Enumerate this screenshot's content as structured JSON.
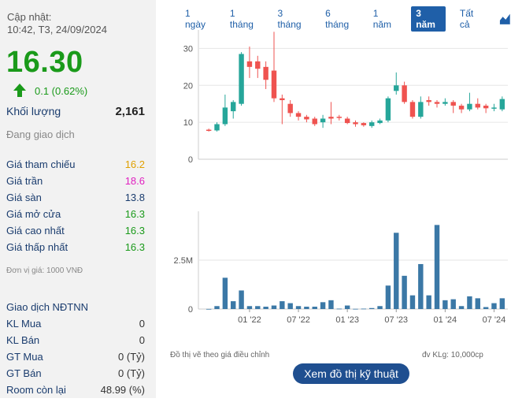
{
  "update": {
    "label": "Cập nhật:",
    "time": "10:42, T3, 24/09/2024"
  },
  "price": {
    "current": "16.30",
    "change": "0.1 (0.62%)",
    "color": "#1a9a1a"
  },
  "volume": {
    "label": "Khối lượng",
    "value": "2,161"
  },
  "status": "Đang giao dịch",
  "prices": [
    {
      "label": "Giá tham chiếu",
      "value": "16.2",
      "color": "#e0a000"
    },
    {
      "label": "Giá trần",
      "value": "18.6",
      "color": "#e020c0"
    },
    {
      "label": "Giá sàn",
      "value": "13.8",
      "color": "#1a3c6e"
    },
    {
      "label": "Giá mở cửa",
      "value": "16.3",
      "color": "#1a9a1a"
    },
    {
      "label": "Giá cao nhất",
      "value": "16.3",
      "color": "#1a9a1a"
    },
    {
      "label": "Giá thấp nhất",
      "value": "16.3",
      "color": "#1a9a1a"
    }
  ],
  "unit_note": "Đơn vị giá: 1000 VNĐ",
  "foreign": {
    "title": "Giao dịch NĐTNN",
    "rows": [
      {
        "label": "KL Mua",
        "value": "0"
      },
      {
        "label": "KL Bán",
        "value": "0"
      },
      {
        "label": "GT Mua",
        "value": "0 (Tỷ)"
      },
      {
        "label": "GT Bán",
        "value": "0 (Tỷ)"
      },
      {
        "label": "Room còn lại",
        "value": "48.99 (%)"
      }
    ]
  },
  "tabs": [
    {
      "label": "1 ngày",
      "active": false
    },
    {
      "label": "1 tháng",
      "active": false
    },
    {
      "label": "3 tháng",
      "active": false
    },
    {
      "label": "6 tháng",
      "active": false
    },
    {
      "label": "1 năm",
      "active": false
    },
    {
      "label": "3 năm",
      "active": true
    },
    {
      "label": "Tất cả",
      "active": false
    }
  ],
  "tab_icon": "chart-area-icon",
  "notes": {
    "left": "Đồ thị vẽ theo giá điều chỉnh",
    "right": "đv KLg: 10,000cp"
  },
  "tech_button": "Xem đồ thị kỹ thuật",
  "chart_data": [
    {
      "type": "candlestick",
      "y_ticks": [
        "30",
        "20",
        "10",
        "0"
      ],
      "ylim": [
        0,
        35
      ],
      "x_ticks": [
        "01 '22",
        "07 '22",
        "01 '23",
        "07 '23",
        "01 '24",
        "07 '24"
      ],
      "up_color": "#26a69a",
      "down_color": "#ef5350",
      "candles": [
        {
          "o": 8.0,
          "c": 7.8,
          "h": 8.3,
          "l": 7.5
        },
        {
          "o": 7.8,
          "c": 9.5,
          "h": 10.0,
          "l": 7.5
        },
        {
          "o": 9.5,
          "c": 14.0,
          "h": 17.5,
          "l": 9.0
        },
        {
          "o": 13.0,
          "c": 15.5,
          "h": 16.0,
          "l": 11.0
        },
        {
          "o": 15.0,
          "c": 28.5,
          "h": 29.0,
          "l": 14.5
        },
        {
          "o": 26.5,
          "c": 25.0,
          "h": 30.5,
          "l": 22.0
        },
        {
          "o": 26.5,
          "c": 24.5,
          "h": 28.0,
          "l": 22.0
        },
        {
          "o": 25.0,
          "c": 21.5,
          "h": 26.5,
          "l": 19.0
        },
        {
          "o": 24.0,
          "c": 16.5,
          "h": 34.5,
          "l": 15.5
        },
        {
          "o": 16.5,
          "c": 16.0,
          "h": 17.5,
          "l": 9.5
        },
        {
          "o": 15.0,
          "c": 12.5,
          "h": 16.0,
          "l": 11.5
        },
        {
          "o": 12.5,
          "c": 11.5,
          "h": 13.0,
          "l": 10.5
        },
        {
          "o": 11.5,
          "c": 10.8,
          "h": 12.0,
          "l": 10.0
        },
        {
          "o": 11.0,
          "c": 9.5,
          "h": 11.5,
          "l": 9.0
        },
        {
          "o": 10.0,
          "c": 11.0,
          "h": 12.0,
          "l": 8.5
        },
        {
          "o": 11.5,
          "c": 11.0,
          "h": 15.5,
          "l": 9.5
        },
        {
          "o": 11.5,
          "c": 11.2,
          "h": 12.0,
          "l": 10.5
        },
        {
          "o": 11.0,
          "c": 9.8,
          "h": 11.5,
          "l": 9.5
        },
        {
          "o": 10.0,
          "c": 9.5,
          "h": 10.5,
          "l": 8.8
        },
        {
          "o": 9.8,
          "c": 9.2,
          "h": 10.0,
          "l": 8.8
        },
        {
          "o": 9.0,
          "c": 10.0,
          "h": 10.5,
          "l": 8.5
        },
        {
          "o": 9.8,
          "c": 10.5,
          "h": 11.0,
          "l": 9.5
        },
        {
          "o": 10.5,
          "c": 16.5,
          "h": 17.0,
          "l": 10.0
        },
        {
          "o": 18.5,
          "c": 20.0,
          "h": 23.5,
          "l": 17.5
        },
        {
          "o": 20.0,
          "c": 15.5,
          "h": 21.0,
          "l": 15.0
        },
        {
          "o": 15.5,
          "c": 11.5,
          "h": 16.0,
          "l": 11.0
        },
        {
          "o": 11.5,
          "c": 15.5,
          "h": 17.0,
          "l": 11.0
        },
        {
          "o": 16.0,
          "c": 15.5,
          "h": 17.0,
          "l": 14.5
        },
        {
          "o": 15.5,
          "c": 15.0,
          "h": 16.0,
          "l": 14.0
        },
        {
          "o": 15.0,
          "c": 15.5,
          "h": 16.5,
          "l": 14.5
        },
        {
          "o": 15.5,
          "c": 14.5,
          "h": 16.0,
          "l": 12.5
        },
        {
          "o": 14.5,
          "c": 13.5,
          "h": 15.0,
          "l": 12.5
        },
        {
          "o": 13.5,
          "c": 15.0,
          "h": 18.0,
          "l": 13.0
        },
        {
          "o": 15.0,
          "c": 14.0,
          "h": 16.5,
          "l": 13.5
        },
        {
          "o": 14.5,
          "c": 13.8,
          "h": 15.0,
          "l": 12.5
        },
        {
          "o": 14.0,
          "c": 14.0,
          "h": 15.0,
          "l": 13.0
        },
        {
          "o": 13.5,
          "c": 16.3,
          "h": 17.0,
          "l": 13.0
        }
      ]
    },
    {
      "type": "bar",
      "y_ticks": [
        "2.5M",
        "0"
      ],
      "ylim": [
        0,
        5000000
      ],
      "values": [
        5000,
        150000,
        1600000,
        400000,
        950000,
        150000,
        150000,
        120000,
        180000,
        400000,
        300000,
        150000,
        120000,
        120000,
        350000,
        450000,
        20000,
        180000,
        10000,
        20000,
        50000,
        150000,
        1200000,
        3900000,
        1700000,
        700000,
        2300000,
        700000,
        4300000,
        450000,
        500000,
        150000,
        650000,
        550000,
        100000,
        300000,
        550000
      ]
    }
  ]
}
